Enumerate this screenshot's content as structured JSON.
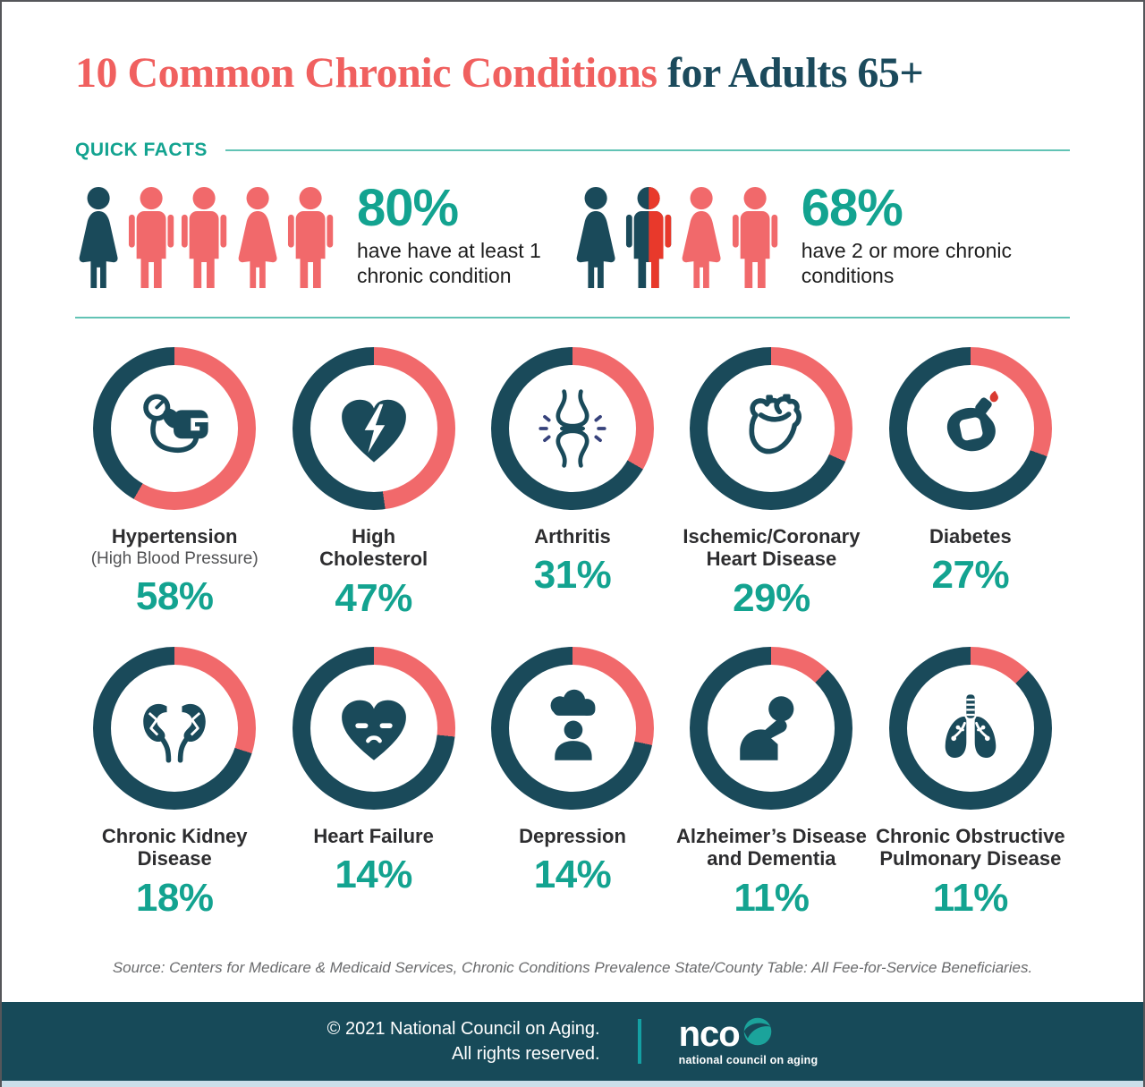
{
  "title": {
    "main": "10 Common Chronic Conditions ",
    "suffix": "for Adults 65+"
  },
  "quick_facts": {
    "heading": "QUICK FACTS",
    "facts": [
      {
        "percent": "80%",
        "description": "have have at least 1\nchronic condition",
        "people": [
          {
            "type": "woman",
            "color": "teal"
          },
          {
            "type": "man",
            "color": "coral"
          },
          {
            "type": "man",
            "color": "coral"
          },
          {
            "type": "woman",
            "color": "coral"
          },
          {
            "type": "man",
            "color": "coral"
          }
        ]
      },
      {
        "percent": "68%",
        "description": "have 2 or more chronic\nconditions",
        "people": [
          {
            "type": "woman",
            "color": "teal"
          },
          {
            "type": "man-split",
            "color": "teal-red"
          },
          {
            "type": "woman",
            "color": "coral"
          },
          {
            "type": "man",
            "color": "coral"
          }
        ]
      }
    ]
  },
  "conditions": [
    {
      "name": "Hypertension",
      "subtitle": "(High Blood Pressure)",
      "percent": "58%",
      "value": 58,
      "arc_deg": 210,
      "icon": "blood-pressure-monitor"
    },
    {
      "name": "High\nCholesterol",
      "percent": "47%",
      "value": 47,
      "arc_deg": 172,
      "icon": "broken-heart"
    },
    {
      "name": "Arthritis",
      "percent": "31%",
      "value": 31,
      "arc_deg": 120,
      "icon": "knee-joint"
    },
    {
      "name": "Ischemic/Coronary\nHeart Disease",
      "percent": "29%",
      "value": 29,
      "arc_deg": 114,
      "icon": "anatomical-heart"
    },
    {
      "name": "Diabetes",
      "percent": "27%",
      "value": 27,
      "arc_deg": 110,
      "icon": "glucose-meter"
    },
    {
      "name": "Chronic Kidney\nDisease",
      "percent": "18%",
      "value": 18,
      "arc_deg": 108,
      "icon": "kidneys"
    },
    {
      "name": "Heart Failure",
      "percent": "14%",
      "value": 14,
      "arc_deg": 96,
      "icon": "sad-heart"
    },
    {
      "name": "Depression",
      "percent": "14%",
      "value": 14,
      "arc_deg": 102,
      "icon": "rain-cloud-person"
    },
    {
      "name": "Alzheimer’s Disease\nand Dementia",
      "percent": "11%",
      "value": 11,
      "arc_deg": 44,
      "icon": "thinking-person"
    },
    {
      "name": "Chronic Obstructive\nPulmonary Disease",
      "percent": "11%",
      "value": 11,
      "arc_deg": 45,
      "icon": "lungs"
    }
  ],
  "chart_data": {
    "type": "pie",
    "title": "10 Common Chronic Conditions for Adults 65+",
    "unit": "%",
    "quick_facts": [
      {
        "label": "have have at least 1 chronic condition",
        "value": 80
      },
      {
        "label": "have 2 or more chronic conditions",
        "value": 68
      }
    ],
    "categories": [
      "Hypertension (High Blood Pressure)",
      "High Cholesterol",
      "Arthritis",
      "Ischemic/Coronary Heart Disease",
      "Diabetes",
      "Chronic Kidney Disease",
      "Heart Failure",
      "Depression",
      "Alzheimer’s Disease and Dementia",
      "Chronic Obstructive Pulmonary Disease"
    ],
    "values": [
      58,
      47,
      31,
      29,
      27,
      18,
      14,
      14,
      11,
      11
    ],
    "source": "Source: Centers for Medicare & Medicaid Services, Chronic Conditions Prevalence State/County Table: All Fee-for-Service Beneficiaries."
  },
  "source": "Source: Centers for Medicare & Medicaid Services, Chronic Conditions Prevalence State/County Table: All Fee-for-Service Beneficiaries.",
  "footer": {
    "copyright": "© 2021 National Council on Aging.\nAll rights reserved.",
    "logo_text": "nco",
    "logo_tagline": "national council on aging"
  },
  "colors": {
    "coral": "#F1696B",
    "dark_teal": "#1A4A5A",
    "teal": "#13A390",
    "red": "#E8392B",
    "divider_teal": "#62C3B5",
    "footer_bg": "#174A59",
    "bottom_strip": "#CBDFEA",
    "title_coral": "#F0605F",
    "title_dark": "#1B4A5C"
  }
}
